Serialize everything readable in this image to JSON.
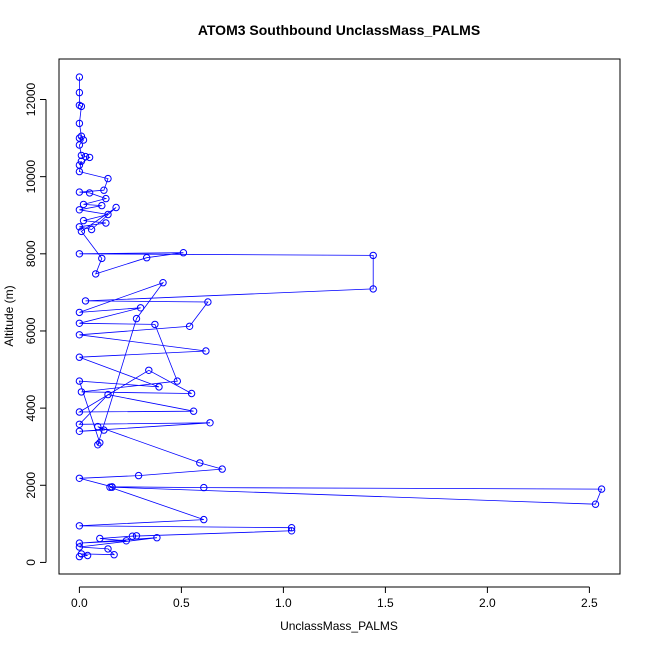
{
  "chart_data": {
    "type": "line",
    "title": "ATOM3 Southbound UnclassMass_PALMS",
    "xlabel": "UnclassMass_PALMS",
    "ylabel": "Altitude (m)",
    "xlim": [
      -0.1,
      2.65
    ],
    "ylim": [
      -300,
      13050
    ],
    "x_ticks": [
      0,
      0.5,
      1,
      1.5,
      2,
      2.5
    ],
    "x_tick_labels": [
      "0.0",
      "0.5",
      "1.0",
      "1.5",
      "2.0",
      "2.5"
    ],
    "y_ticks": [
      0,
      2000,
      4000,
      6000,
      8000,
      10000,
      12000
    ],
    "y_tick_labels": [
      "0",
      "2000",
      "4000",
      "6000",
      "8000",
      "10000",
      "12000"
    ],
    "grid": false,
    "legend": "none",
    "series_color": "#0000ff",
    "marker": "open-circle",
    "series": [
      {
        "x": [
          0.0,
          0.0,
          0.0,
          0.01,
          0.0,
          0.01,
          0.0,
          0.02,
          0.0,
          0.01,
          0.03,
          0.05,
          0.0,
          0.01,
          0.0,
          0.14,
          0.12,
          0.0,
          0.05,
          0.13,
          0.02,
          0.11,
          0.0,
          0.14,
          0.02,
          0.13,
          0.0,
          0.06,
          0.18,
          0.01,
          0.11,
          0.08,
          0.33,
          0.51,
          0.0,
          1.44,
          1.44,
          0.03,
          0.63,
          0.54,
          0.0,
          0.62,
          0.0,
          0.39,
          0.0,
          0.1,
          0.09,
          0.28,
          0.41,
          0.0,
          0.3,
          0.0,
          0.37,
          0.48,
          0.01,
          0.55,
          0.34,
          0.0,
          0.56,
          0.14,
          0.0,
          0.64,
          0.0,
          0.12,
          0.09,
          0.59,
          0.7,
          0.29,
          0.0,
          0.16,
          0.61,
          2.56,
          2.53,
          0.16,
          0.15,
          0.61,
          0.0,
          1.04,
          1.04,
          0.26,
          0.28,
          0.1,
          0.23,
          0.0,
          0.38,
          0.0,
          0.14,
          0.17,
          0.01,
          0.04,
          0.0
        ],
        "y": [
          12580,
          12180,
          11850,
          11820,
          11380,
          11050,
          11000,
          10950,
          10820,
          10550,
          10520,
          10500,
          10300,
          10400,
          10130,
          9950,
          9650,
          9600,
          9580,
          9430,
          9280,
          9250,
          9140,
          9020,
          8860,
          8800,
          8700,
          8630,
          9200,
          8580,
          7880,
          7480,
          7900,
          8030,
          8000,
          7960,
          7090,
          6780,
          6750,
          6120,
          5900,
          5480,
          5320,
          4550,
          4700,
          3100,
          3050,
          6320,
          7250,
          6480,
          6600,
          6200,
          6170,
          4700,
          4420,
          4380,
          4980,
          3900,
          3920,
          4350,
          3580,
          3620,
          3400,
          3430,
          3520,
          2580,
          2420,
          2250,
          2180,
          1960,
          1940,
          1900,
          1510,
          1950,
          1950,
          1110,
          950,
          900,
          820,
          680,
          690,
          620,
          560,
          500,
          640,
          400,
          350,
          200,
          220,
          180,
          150
        ]
      }
    ]
  }
}
